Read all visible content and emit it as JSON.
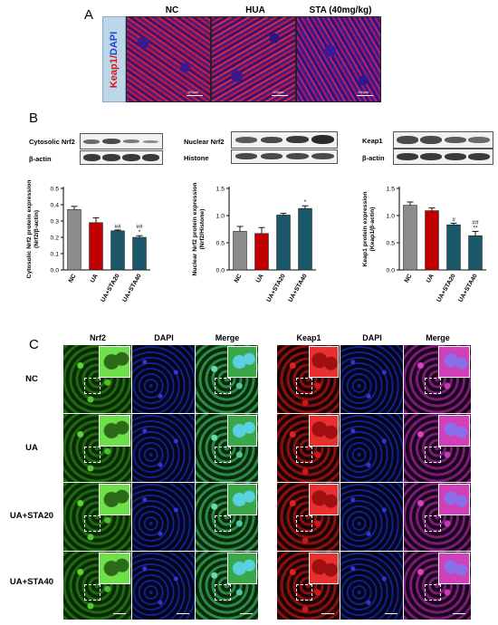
{
  "panel_a": {
    "letter": "A",
    "stain_red": "Keap1",
    "stain_sep": "/",
    "stain_blue": "DAPI",
    "columns": [
      "NC",
      "HUA",
      "STA (40mg/kg)"
    ],
    "scale_label": "100μm"
  },
  "panel_b": {
    "letter": "B",
    "blots": {
      "left": [
        "Cytosolic Nrf2",
        "β-actin"
      ],
      "middle": [
        "Nuclear Nrf2",
        "Histone"
      ],
      "right": [
        "Keap1",
        "β-actin"
      ]
    }
  },
  "panel_c": {
    "letter": "C",
    "col_labels": [
      "Nrf2",
      "DAPI",
      "Merge",
      "Keap1",
      "DAPI",
      "Merge"
    ],
    "row_labels": [
      "NC",
      "UA",
      "UA+STA20",
      "UA+STA40"
    ]
  },
  "chart_data": [
    {
      "type": "bar",
      "categories": [
        "NC",
        "UA",
        "UA+STA20",
        "UA+STA40"
      ],
      "values": [
        0.37,
        0.29,
        0.24,
        0.2
      ],
      "errors": [
        0.02,
        0.03,
        0.005,
        0.01
      ],
      "annotations": [
        "",
        "",
        "##",
        "##\n*"
      ],
      "ylabel": "Cytosolic Nrf2 protein expression\n(Nrf2/β-actin)",
      "ylim": [
        0,
        0.5
      ],
      "yticks": [
        "0.0",
        "0.1",
        "0.2",
        "0.3",
        "0.4",
        "0.5"
      ],
      "colors": [
        "#8c8c8c",
        "#c00000",
        "#1a5768",
        "#1a5768"
      ]
    },
    {
      "type": "bar",
      "categories": [
        "NC",
        "UA",
        "UA+STA20",
        "UA+STA40"
      ],
      "values": [
        0.71,
        0.67,
        1.01,
        1.13
      ],
      "errors": [
        0.09,
        0.11,
        0.03,
        0.05
      ],
      "annotations": [
        "",
        "",
        "",
        "*"
      ],
      "ylabel": "Nuclear Nrf2 protein expression\n(Nrf2/Histone)",
      "ylim": [
        0,
        1.5
      ],
      "yticks": [
        "0.0",
        "0.5",
        "1.0",
        "1.5"
      ],
      "colors": [
        "#8c8c8c",
        "#c00000",
        "#1a5768",
        "#1a5768"
      ]
    },
    {
      "type": "bar",
      "categories": [
        "NC",
        "UA",
        "UA+STA20",
        "UA+STA40"
      ],
      "values": [
        1.19,
        1.09,
        0.83,
        0.63
      ],
      "errors": [
        0.06,
        0.05,
        0.03,
        0.08
      ],
      "annotations": [
        "",
        "",
        "#",
        "##\n**"
      ],
      "ylabel": "Keap1 protein expression\n(Keap1/β-actin)",
      "ylim": [
        0,
        1.5
      ],
      "yticks": [
        "0.0",
        "0.5",
        "1.0",
        "1.5"
      ],
      "colors": [
        "#8c8c8c",
        "#c00000",
        "#1a5768",
        "#1a5768"
      ]
    }
  ],
  "colors": {
    "gray": "#8c8c8c",
    "red": "#c00000",
    "teal": "#1a5768",
    "stain_bg": "#bcd6ea"
  }
}
